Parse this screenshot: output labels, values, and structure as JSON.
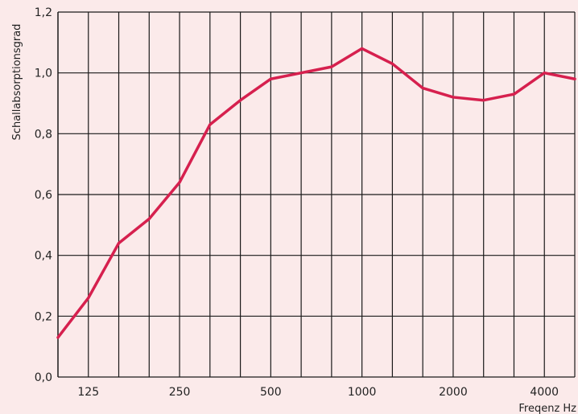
{
  "chart_data": {
    "type": "line",
    "title": "",
    "ylabel": "Schallabsorptionsgrad",
    "xlabel": "Freqenz Hz",
    "ylim": [
      0.0,
      1.2
    ],
    "y_ticks": [
      "0,0",
      "0,2",
      "0,4",
      "0,6",
      "0,8",
      "1,0",
      "1,2"
    ],
    "x_ticks": [
      "125",
      "250",
      "500",
      "1000",
      "2000",
      "4000"
    ],
    "grid": true,
    "line_color": "#d6204e",
    "background_color": "#fbeaea",
    "grid_color": "#1a1a1a",
    "x": [
      "100",
      "125",
      "160",
      "200",
      "250",
      "315",
      "400",
      "500",
      "630",
      "800",
      "1000",
      "1250",
      "1600",
      "2000",
      "2500",
      "3150",
      "4000",
      "5000"
    ],
    "series": [
      {
        "values": [
          0.13,
          0.26,
          0.44,
          0.52,
          0.64,
          0.83,
          0.91,
          0.98,
          1.0,
          1.02,
          1.08,
          1.03,
          0.95,
          0.92,
          0.91,
          0.93,
          1.0,
          0.98
        ]
      }
    ]
  }
}
